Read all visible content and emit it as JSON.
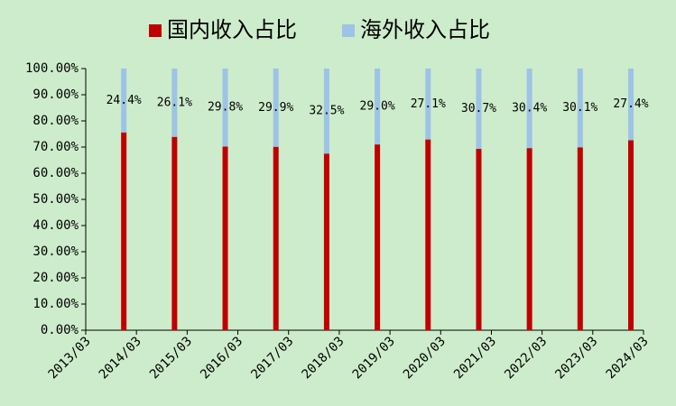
{
  "chart_data": {
    "type": "stacked_bar",
    "categories": [
      "2013/03",
      "2014/03",
      "2015/03",
      "2016/03",
      "2017/03",
      "2018/03",
      "2019/03",
      "2020/03",
      "2021/03",
      "2022/03",
      "2023/03",
      "2024/03"
    ],
    "series": [
      {
        "name": "国内收入占比",
        "color": "#c00000",
        "values": [
          null,
          75.6,
          73.9,
          70.2,
          70.1,
          67.5,
          71.0,
          72.9,
          69.3,
          69.6,
          69.9,
          72.6
        ]
      },
      {
        "name": "海外收入占比",
        "color": "#9dc3e6",
        "values": [
          null,
          24.4,
          26.1,
          29.8,
          29.9,
          32.5,
          29.0,
          27.1,
          30.7,
          30.4,
          30.1,
          27.4
        ],
        "value_labels": [
          null,
          "24.4%",
          "26.1%",
          "29.8%",
          "29.9%",
          "32.5%",
          "29.0%",
          "27.1%",
          "30.7%",
          "30.4%",
          "30.1%",
          "27.4%"
        ]
      }
    ],
    "ylim": [
      0,
      100
    ],
    "yticks": [
      {
        "value": 0,
        "label": "0.00%"
      },
      {
        "value": 10,
        "label": "10.00%"
      },
      {
        "value": 20,
        "label": "20.00%"
      },
      {
        "value": 30,
        "label": "30.00%"
      },
      {
        "value": 40,
        "label": "40.00%"
      },
      {
        "value": 50,
        "label": "50.00%"
      },
      {
        "value": 60,
        "label": "60.00%"
      },
      {
        "value": 70,
        "label": "70.00%"
      },
      {
        "value": 80,
        "label": "80.00%"
      },
      {
        "value": 90,
        "label": "90.00%"
      },
      {
        "value": 100,
        "label": "100.00%"
      }
    ],
    "legend": "top"
  }
}
